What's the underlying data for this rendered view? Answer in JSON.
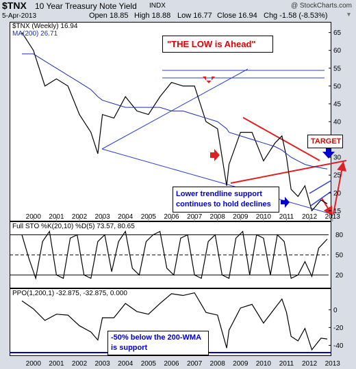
{
  "header": {
    "symbol": "$TNX",
    "name": "10 Year Treasury Note Yield",
    "exchange": "INDX",
    "date": "5-Apr-2013",
    "open": "Open 18.85",
    "high": "High 18.88",
    "low": "Low 16.77",
    "close": "Close 16.94",
    "chg": "Chg -1.58 (-8.53%)",
    "credit": "@ StockCharts.com"
  },
  "chart_data": [
    {
      "type": "line",
      "legend": [
        "$TNX (Weekly) 16.94",
        "MA(200) 26.71"
      ],
      "x": [
        2000.0,
        2000.5,
        2001.0,
        2001.5,
        2002.0,
        2002.5,
        2003.0,
        2003.3,
        2003.5,
        2004.0,
        2004.5,
        2005.0,
        2005.5,
        2006.0,
        2006.5,
        2007.0,
        2007.5,
        2008.0,
        2008.5,
        2008.9,
        2009.0,
        2009.5,
        2010.0,
        2010.5,
        2011.0,
        2011.3,
        2011.5,
        2011.7,
        2012.0,
        2012.3,
        2012.6,
        2013.0,
        2013.27
      ],
      "series": [
        {
          "name": "$TNX (Weekly)",
          "values": [
            65,
            60,
            50,
            52,
            50,
            42,
            37,
            31,
            42,
            41,
            47,
            43,
            42,
            47,
            51,
            50,
            50,
            40,
            38,
            22,
            28,
            37,
            37,
            29,
            34,
            36,
            30,
            21,
            19,
            22,
            15,
            18,
            16.94
          ]
        },
        {
          "name": "MA(200)",
          "values": [
            59,
            59,
            57,
            55,
            53,
            51,
            49,
            47,
            46,
            45,
            44,
            44,
            44,
            44,
            43,
            43,
            42,
            41,
            40,
            38,
            37,
            36,
            35,
            34,
            33,
            32,
            31,
            30,
            29,
            28,
            27.5,
            27,
            26.71
          ]
        }
      ],
      "xticks": [
        "2000",
        "2001",
        "2002",
        "2003",
        "2004",
        "2005",
        "2006",
        "2007",
        "2008",
        "2009",
        "2010",
        "2011",
        "2012",
        "2013"
      ],
      "yticks": [
        "15",
        "20",
        "25",
        "30",
        "35",
        "40",
        "45",
        "50",
        "55",
        "60",
        "65"
      ],
      "ylim": [
        12,
        68
      ],
      "annotations": [
        "\"THE LOW is Ahead\"",
        "TARGET",
        "Lower trendline support\ncontinues to hold declines"
      ]
    },
    {
      "type": "line",
      "title": "Full STO %K(20,10) %D(5) 73.57, 80.65",
      "x": [
        2000.0,
        2000.3,
        2000.6,
        2000.9,
        2001.2,
        2001.5,
        2001.8,
        2002.1,
        2002.4,
        2002.7,
        2003.0,
        2003.3,
        2003.6,
        2003.9,
        2004.2,
        2004.5,
        2004.8,
        2005.1,
        2005.4,
        2005.7,
        2006.0,
        2006.3,
        2006.6,
        2006.9,
        2007.2,
        2007.5,
        2007.8,
        2008.1,
        2008.4,
        2008.7,
        2009.0,
        2009.3,
        2009.6,
        2009.9,
        2010.2,
        2010.5,
        2010.8,
        2011.1,
        2011.4,
        2011.7,
        2012.0,
        2012.3,
        2012.6,
        2012.9,
        2013.27
      ],
      "series": [
        {
          "name": "%K",
          "values": [
            80,
            45,
            15,
            70,
            85,
            20,
            15,
            75,
            80,
            20,
            15,
            70,
            80,
            25,
            70,
            85,
            30,
            20,
            70,
            80,
            85,
            30,
            20,
            75,
            80,
            20,
            15,
            70,
            80,
            20,
            15,
            75,
            85,
            20,
            80,
            75,
            20,
            80,
            70,
            15,
            20,
            40,
            18,
            60,
            73.57
          ]
        }
      ],
      "yticks": [
        "20",
        "50",
        "80"
      ],
      "ylim": [
        0,
        100
      ]
    },
    {
      "type": "line",
      "title": "PPO(1,200,1) -32.875, -32.875, 0.000",
      "x": [
        2000.0,
        2000.5,
        2001.0,
        2001.5,
        2002.0,
        2002.5,
        2003.0,
        2003.3,
        2003.5,
        2004.0,
        2004.5,
        2005.0,
        2005.5,
        2006.0,
        2006.5,
        2007.0,
        2007.5,
        2008.0,
        2008.5,
        2008.9,
        2009.0,
        2009.5,
        2010.0,
        2010.5,
        2011.0,
        2011.3,
        2011.5,
        2011.7,
        2012.0,
        2012.3,
        2012.6,
        2013.0,
        2013.27
      ],
      "series": [
        {
          "name": "PPO",
          "values": [
            10,
            1,
            -12,
            -5,
            -6,
            -18,
            -25,
            -34,
            -9,
            -9,
            7,
            -2,
            -5,
            7,
            18,
            16,
            19,
            -3,
            -6,
            -43,
            -23,
            2,
            6,
            -15,
            2,
            12,
            -3,
            -30,
            -35,
            -21,
            -45,
            -32,
            -32.875
          ]
        }
      ],
      "yticks": [
        "0",
        "-20",
        "-40"
      ],
      "ylim": [
        -52,
        24
      ],
      "annotation": "-50% below the 200-WMA\nis support"
    }
  ],
  "colors": {
    "price": "#000000",
    "ma": "#1a2eb0",
    "trend_blue": "#2a3fd6",
    "trend_red": "#e02020",
    "callout_red": "#e00000",
    "callout_blue": "#0000cc",
    "bg": "#d9dde6"
  }
}
